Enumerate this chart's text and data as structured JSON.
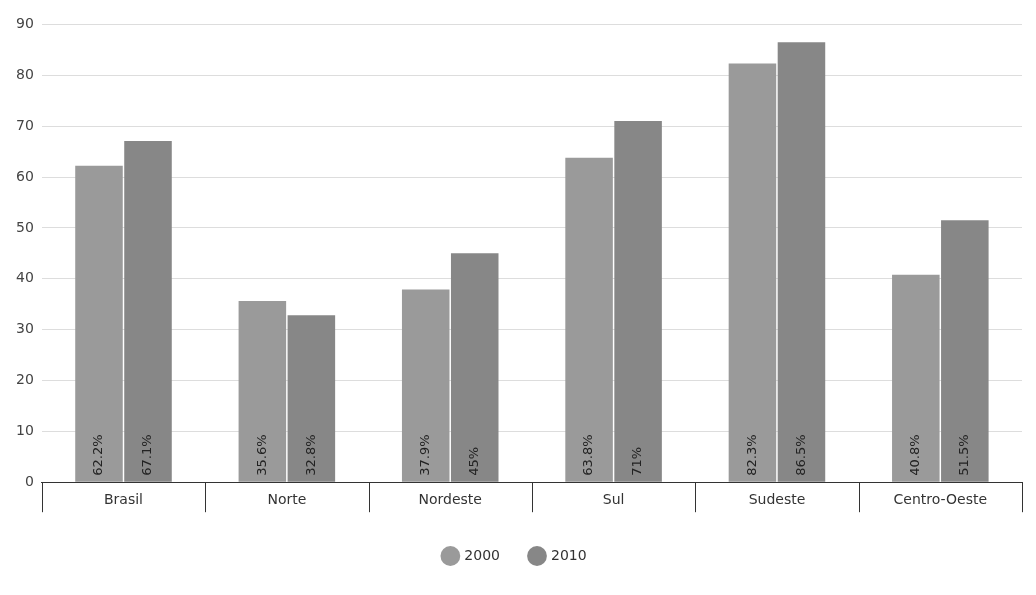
{
  "chart_data": {
    "type": "bar",
    "categories": [
      "Brasil",
      "Norte",
      "Nordeste",
      "Sul",
      "Sudeste",
      "Centro-Oeste"
    ],
    "series": [
      {
        "name": "2000",
        "color": "#9a9a9a",
        "values": [
          62.2,
          35.6,
          37.9,
          63.8,
          82.3,
          40.8
        ],
        "value_labels": [
          "62.2%",
          "35.6%",
          "37.9%",
          "63.8%",
          "82.3%",
          "40.8%"
        ]
      },
      {
        "name": "2010",
        "color": "#878787",
        "values": [
          67.1,
          32.8,
          45,
          71,
          86.5,
          51.5
        ],
        "value_labels": [
          "67.1%",
          "32.8%",
          "45%",
          "71%",
          "86.5%",
          "51.5%"
        ]
      }
    ],
    "ylim": [
      0,
      90
    ],
    "yticks": [
      0,
      10,
      20,
      30,
      40,
      50,
      60,
      70,
      80,
      90
    ],
    "grid": "y",
    "legend": "bottom"
  }
}
